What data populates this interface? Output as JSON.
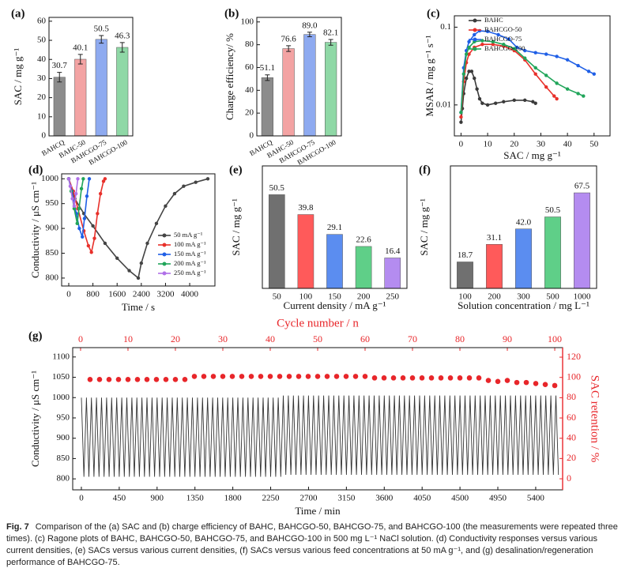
{
  "chart_data": [
    {
      "type": "bar",
      "label": "(a)",
      "ylabel": "SAC / mg g⁻¹",
      "categories": [
        "BAHCQ",
        "BAHC-50",
        "BAHCGO-75",
        "BAHCGO-100"
      ],
      "values": [
        30.7,
        40.1,
        50.5,
        46.3
      ],
      "errors": [
        2.5,
        2.5,
        2,
        2.5
      ],
      "colors": [
        "#8c8c8c",
        "#f3a3a3",
        "#8eaaf0",
        "#8fd8a6"
      ],
      "ylim": [
        0,
        62
      ],
      "yticks": [
        0,
        10,
        20,
        30,
        40,
        50,
        60
      ]
    },
    {
      "type": "bar",
      "label": "(b)",
      "ylabel": "Charge efficiency/ %",
      "categories": [
        "BAHCQ",
        "BAHC-50",
        "BAHCGO-75",
        "BAHCGO-100"
      ],
      "values": [
        51.1,
        76.6,
        89.0,
        82.1
      ],
      "value_labels": [
        "51.1",
        "76.6",
        "89.0",
        "82.1"
      ],
      "errors": [
        2.5,
        2.5,
        2,
        2.5
      ],
      "colors": [
        "#8c8c8c",
        "#f3a3a3",
        "#8eaaf0",
        "#8fd8a6"
      ],
      "ylim": [
        0,
        104
      ],
      "yticks": [
        0,
        20,
        40,
        60,
        80,
        100
      ]
    },
    {
      "type": "line",
      "label": "(c)",
      "xlabel": "SAC / mg g⁻¹",
      "ylabel": "MSAR / mg g⁻¹ s⁻¹",
      "ylog": true,
      "legend": "upper left",
      "xlim": [
        -2.5,
        56
      ],
      "xticks": [
        0,
        10,
        20,
        30,
        40,
        50
      ],
      "ylim": [
        0.004,
        0.14
      ],
      "yticks": [
        0.01,
        0.1
      ],
      "series": [
        {
          "name": "BAHC",
          "color": "#3a3a3a",
          "x": [
            0,
            0.5,
            1,
            2,
            3,
            4,
            5,
            6,
            7,
            8,
            10,
            13,
            16,
            20,
            24,
            27,
            28
          ],
          "values": [
            0.006,
            0.009,
            0.014,
            0.022,
            0.027,
            0.027,
            0.022,
            0.016,
            0.012,
            0.0105,
            0.01,
            0.0105,
            0.011,
            0.0115,
            0.0115,
            0.011,
            0.0105
          ]
        },
        {
          "name": "BAHCGO-50",
          "color": "#e8302a",
          "x": [
            0,
            1,
            2,
            3,
            5,
            8,
            12,
            16,
            20,
            24,
            28,
            32,
            35,
            36
          ],
          "values": [
            0.007,
            0.02,
            0.035,
            0.045,
            0.055,
            0.06,
            0.06,
            0.057,
            0.05,
            0.038,
            0.025,
            0.017,
            0.013,
            0.012
          ]
        },
        {
          "name": "BAHCGO-75",
          "color": "#1f5fe6",
          "x": [
            0,
            1,
            2,
            3,
            5,
            7,
            10,
            14,
            18,
            21,
            24,
            28,
            32,
            36,
            40,
            44,
            48,
            50
          ],
          "values": [
            0.008,
            0.03,
            0.05,
            0.065,
            0.08,
            0.09,
            0.088,
            0.08,
            0.07,
            0.055,
            0.05,
            0.047,
            0.045,
            0.042,
            0.038,
            0.032,
            0.027,
            0.025
          ]
        },
        {
          "name": "BAHCGO-100",
          "color": "#21a55a",
          "x": [
            0,
            1,
            2,
            3,
            5,
            8,
            12,
            16,
            20,
            24,
            28,
            32,
            36,
            40,
            44,
            46
          ],
          "values": [
            0.008,
            0.025,
            0.045,
            0.055,
            0.065,
            0.067,
            0.065,
            0.06,
            0.053,
            0.04,
            0.03,
            0.024,
            0.019,
            0.016,
            0.014,
            0.013
          ]
        }
      ]
    },
    {
      "type": "line",
      "label": "(d)",
      "xlabel": "Time / s",
      "ylabel": "Conductivity / μS cm⁻¹",
      "legend": "lower right",
      "xlim": [
        -235,
        4835
      ],
      "xticks": [
        0,
        800,
        1600,
        2400,
        3200,
        4000
      ],
      "ylim": [
        784,
        1010
      ],
      "yticks": [
        800,
        850,
        900,
        950,
        1000
      ],
      "series": [
        {
          "name": "50 mA g⁻¹",
          "color": "#444444",
          "x": [
            0,
            200,
            500,
            800,
            1200,
            1600,
            2000,
            2300,
            2400,
            2600,
            2900,
            3200,
            3500,
            3800,
            4200,
            4600
          ],
          "values": [
            1000,
            960,
            930,
            905,
            870,
            840,
            815,
            800,
            830,
            870,
            910,
            945,
            970,
            985,
            993,
            1000
          ]
        },
        {
          "name": "100 mA g⁻¹",
          "color": "#e8302a",
          "x": [
            0,
            150,
            300,
            500,
            650,
            750,
            850,
            950,
            1050,
            1150,
            1200
          ],
          "values": [
            1000,
            975,
            940,
            895,
            865,
            852,
            880,
            930,
            970,
            995,
            1000
          ]
        },
        {
          "name": "150 mA g⁻¹",
          "color": "#1f5fe6",
          "x": [
            0,
            100,
            250,
            350,
            450,
            520,
            600,
            680
          ],
          "values": [
            1000,
            975,
            930,
            900,
            883,
            920,
            965,
            1000
          ]
        },
        {
          "name": "200 mA g⁻¹",
          "color": "#21a55a",
          "x": [
            0,
            80,
            180,
            280,
            340,
            420,
            480
          ],
          "values": [
            1000,
            975,
            940,
            910,
            940,
            980,
            1000
          ]
        },
        {
          "name": "250 mA g⁻¹",
          "color": "#b070e8",
          "x": [
            0,
            50,
            120,
            180,
            240,
            300
          ],
          "values": [
            1000,
            985,
            960,
            945,
            970,
            1000
          ]
        }
      ]
    },
    {
      "type": "bar",
      "label": "(e)",
      "xlabel": "Current density / mA g⁻¹",
      "ylabel": "SAC / mg g⁻¹",
      "categories": [
        50,
        100,
        150,
        200,
        250
      ],
      "values": [
        50.5,
        39.8,
        29.1,
        22.6,
        16.4
      ],
      "colors": [
        "#707070",
        "#ff5a5a",
        "#5b8df0",
        "#5fcf88",
        "#b48cf0"
      ],
      "ylim": [
        0,
        66
      ]
    },
    {
      "type": "bar",
      "label": "(f)",
      "xlabel": "Solution concentration / mg L⁻¹",
      "ylabel": "SAC / mg g⁻¹",
      "categories": [
        100,
        200,
        300,
        500,
        1000
      ],
      "values": [
        18.7,
        31.1,
        42.0,
        50.5,
        67.5
      ],
      "value_labels": [
        "18.7",
        "31.1",
        "42.0",
        "50.5",
        "67.5"
      ],
      "colors": [
        "#707070",
        "#ff5a5a",
        "#5b8df0",
        "#5fcf88",
        "#b48cf0"
      ],
      "ylim": [
        0,
        86.5
      ]
    },
    {
      "type": "line",
      "label": "(g)",
      "xlabel": "Time / min",
      "ylabel": "Conductivity / μS cm⁻¹",
      "x2label": "Cycle number / n",
      "y2label": "SAC retention / %",
      "y2color": "#e8262a",
      "xlim": [
        -103,
        5720
      ],
      "xticks": [
        0,
        450,
        900,
        1350,
        1800,
        2250,
        2700,
        3150,
        3600,
        4050,
        4500,
        4950,
        5400
      ],
      "x2lim": [
        -1.66,
        101.66
      ],
      "x2ticks": [
        0,
        10,
        20,
        30,
        40,
        50,
        60,
        70,
        80,
        90,
        100
      ],
      "ylim": [
        773,
        1123
      ],
      "yticks": [
        800,
        850,
        900,
        950,
        1000,
        1050,
        1100
      ],
      "y2lim": [
        -10.9,
        129.4
      ],
      "y2ticks": [
        0,
        20,
        40,
        60,
        80,
        100,
        120
      ],
      "series": [
        {
          "name": "Conductivity",
          "color": "#333333",
          "markers": false,
          "x": [
            0,
            30,
            60,
            90,
            120,
            150,
            180,
            210,
            240,
            270,
            300,
            330,
            360,
            390,
            420,
            450,
            480,
            510,
            540,
            570,
            600,
            630,
            660,
            690,
            720,
            750,
            780,
            810,
            840,
            870,
            900,
            930,
            960,
            990,
            1020,
            1050,
            1080,
            1110,
            1140,
            1170,
            1200,
            1230,
            1260,
            1290,
            1320,
            1350,
            1380,
            1410,
            1440,
            1470,
            1500,
            1530,
            1560,
            1590,
            1620,
            1650,
            1680,
            1710,
            1740,
            1770,
            1800,
            1830,
            1860,
            1890,
            1920,
            1950,
            1980,
            2010,
            2040,
            2070,
            2100,
            2130,
            2160,
            2190,
            2220,
            2250,
            2280,
            2310,
            2340,
            2370,
            2400,
            2430,
            2460,
            2490,
            2520,
            2550,
            2580,
            2610,
            2640,
            2670,
            2700,
            2730,
            2760,
            2790,
            2820,
            2850,
            2880,
            2910,
            2940,
            2970,
            3000,
            3030,
            3060,
            3090,
            3120,
            3150,
            3180,
            3210,
            3240,
            3270,
            3300,
            3330,
            3360,
            3390,
            3420,
            3450,
            3480,
            3510,
            3540,
            3570,
            3600,
            3630,
            3660,
            3690,
            3720,
            3750,
            3780,
            3810,
            3840,
            3870,
            3900,
            3930,
            3960,
            3990,
            4020,
            4050,
            4080,
            4110,
            4140,
            4170,
            4200,
            4230,
            4260,
            4290,
            4320,
            4350,
            4380,
            4410,
            4440,
            4470,
            4500,
            4530,
            4560,
            4590,
            4620,
            4650,
            4680,
            4710,
            4740,
            4770,
            4800,
            4830,
            4860,
            4890,
            4920,
            4950,
            4980,
            5010,
            5040,
            5070,
            5100,
            5130,
            5160,
            5190,
            5220,
            5250,
            5280,
            5310,
            5340,
            5370,
            5400,
            5430,
            5460,
            5490,
            5520,
            5550,
            5580,
            5610,
            5640,
            5670
          ],
          "values": [
            1000,
            805,
            1000,
            805,
            1000,
            805,
            1000,
            805,
            1000,
            805,
            1000,
            805,
            1000,
            805,
            1000,
            805,
            1000,
            805,
            1000,
            805,
            1000,
            805,
            1000,
            805,
            1000,
            805,
            1000,
            805,
            1000,
            805,
            1000,
            805,
            1000,
            805,
            1000,
            805,
            1000,
            805,
            1000,
            805,
            1000,
            805,
            1000,
            805,
            1000,
            805,
            1000,
            805,
            1000,
            805,
            1000,
            805,
            1000,
            805,
            1000,
            805,
            1000,
            805,
            1000,
            805,
            1000,
            805,
            1000,
            805,
            1000,
            805,
            1000,
            805,
            1000,
            805,
            1000,
            805,
            1000,
            805,
            1000,
            805,
            1000,
            805,
            1000,
            805,
            1005,
            810,
            1005,
            810,
            1005,
            810,
            1005,
            810,
            1005,
            810,
            1005,
            810,
            1005,
            810,
            1005,
            810,
            1005,
            810,
            1005,
            810,
            1005,
            810,
            1005,
            810,
            1005,
            810,
            1005,
            810,
            1005,
            810,
            1005,
            810,
            1005,
            810,
            1005,
            810,
            1005,
            810,
            1005,
            810,
            1005,
            810,
            1005,
            810,
            1005,
            810,
            1005,
            810,
            1005,
            810,
            1005,
            810,
            1005,
            810,
            1005,
            810,
            1005,
            810,
            1005,
            810,
            1005,
            810,
            1005,
            810,
            1005,
            810,
            1005,
            810,
            1005,
            810,
            1005,
            810,
            1005,
            810,
            1005,
            810,
            1005,
            810,
            1005,
            810,
            1005,
            810,
            1005,
            810,
            1005,
            810,
            1005,
            810,
            1005,
            810,
            1005,
            810,
            1005,
            810,
            1005,
            810,
            1005,
            810,
            1005,
            810,
            1005,
            810,
            1005,
            810,
            1005,
            810,
            1005,
            810,
            1005,
            810
          ]
        },
        {
          "name": "SAC retention",
          "color": "#e8262a",
          "axis": "y2",
          "xaxis": "x2",
          "line": false,
          "x": [
            2,
            4,
            6,
            8,
            10,
            12,
            14,
            16,
            18,
            20,
            22,
            24,
            26,
            28,
            30,
            32,
            34,
            36,
            38,
            40,
            42,
            44,
            46,
            48,
            50,
            52,
            54,
            56,
            58,
            60,
            62,
            64,
            66,
            68,
            70,
            72,
            74,
            76,
            78,
            80,
            82,
            84,
            86,
            88,
            90,
            92,
            94,
            96,
            98,
            100
          ],
          "values": [
            98,
            98,
            98,
            98,
            98,
            98,
            98,
            98,
            98,
            98,
            98,
            101,
            101,
            101,
            101,
            101,
            101,
            101,
            101,
            101,
            101,
            101,
            101,
            101,
            101,
            101,
            101,
            101,
            101,
            101,
            99.5,
            99.5,
            99.5,
            99.5,
            99.5,
            99.5,
            99.5,
            99.5,
            99.5,
            99.5,
            99.5,
            99.5,
            97,
            96,
            97,
            95,
            95,
            94,
            93,
            92
          ]
        }
      ]
    }
  ],
  "caption": {
    "label": "Fig. 7",
    "text": "Comparison of the (a) SAC and (b) charge efficiency of BAHC, BAHCGO-50, BAHCGO-75, and BAHCGO-100 (the measurements were repeated three times). (c) Ragone plots of BAHC, BAHCGO-50, BAHCGO-75, and BAHCGO-100 in 500 mg L⁻¹ NaCl solution. (d) Conductivity responses versus various current densities, (e) SACs versus various current densities, (f) SACs versus various feed concentrations at 50 mA g⁻¹, and (g) desalination/regeneration performance of BAHCGO-75."
  }
}
